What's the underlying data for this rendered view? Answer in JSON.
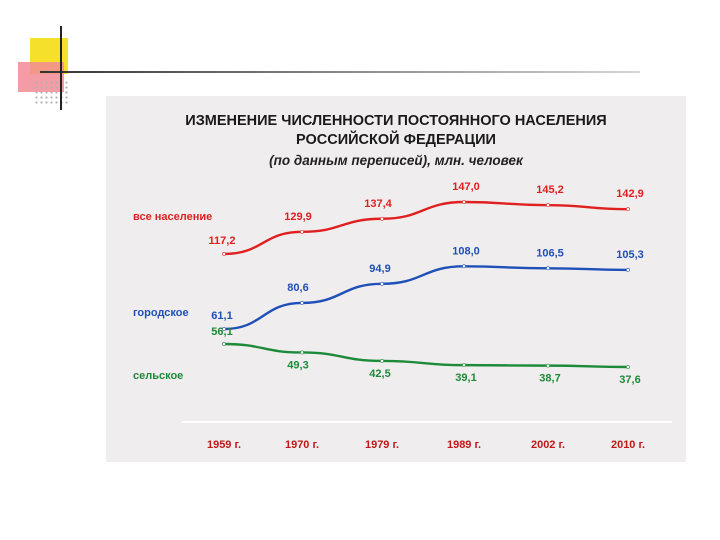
{
  "title_line1": "ИЗМЕНЕНИЕ ЧИСЛЕННОСТИ ПОСТОЯННОГО НАСЕЛЕНИЯ",
  "title_line2": "РОССИЙСКОЙ ФЕДЕРАЦИИ",
  "subtitle": "(по данным переписей), млн. человек",
  "chart_data": {
    "type": "line",
    "title": "ИЗМЕНЕНИЕ ЧИСЛЕННОСТИ ПОСТОЯННОГО НАСЕЛЕНИЯ РОССИЙСКОЙ ФЕДЕРАЦИИ",
    "subtitle": "(по данным переписей), млн. человек",
    "categories": [
      "1959 г.",
      "1970 г.",
      "1979 г.",
      "1989 г.",
      "2002 г.",
      "2010 г."
    ],
    "series": [
      {
        "name": "все население",
        "color": "#e02020",
        "values": [
          117.2,
          129.9,
          137.4,
          147.0,
          145.2,
          142.9
        ],
        "labels": [
          "117,2",
          "129,9",
          "137,4",
          "147,0",
          "145,2",
          "142,9"
        ]
      },
      {
        "name": "городское",
        "color": "#1f4fb8",
        "values": [
          61.1,
          80.6,
          94.9,
          108.0,
          106.5,
          105.3
        ],
        "labels": [
          "61,1",
          "80,6",
          "94,9",
          "108,0",
          "106,5",
          "105,3"
        ]
      },
      {
        "name": "сельское",
        "color": "#1d8a3a",
        "values": [
          56.1,
          49.3,
          42.5,
          39.1,
          38.7,
          37.6
        ],
        "labels": [
          "56,1",
          "49,3",
          "42,5",
          "39,1",
          "38,7",
          "37,6"
        ]
      }
    ],
    "tick_color": "#c01818",
    "grid": false,
    "legend": "left, inline"
  }
}
